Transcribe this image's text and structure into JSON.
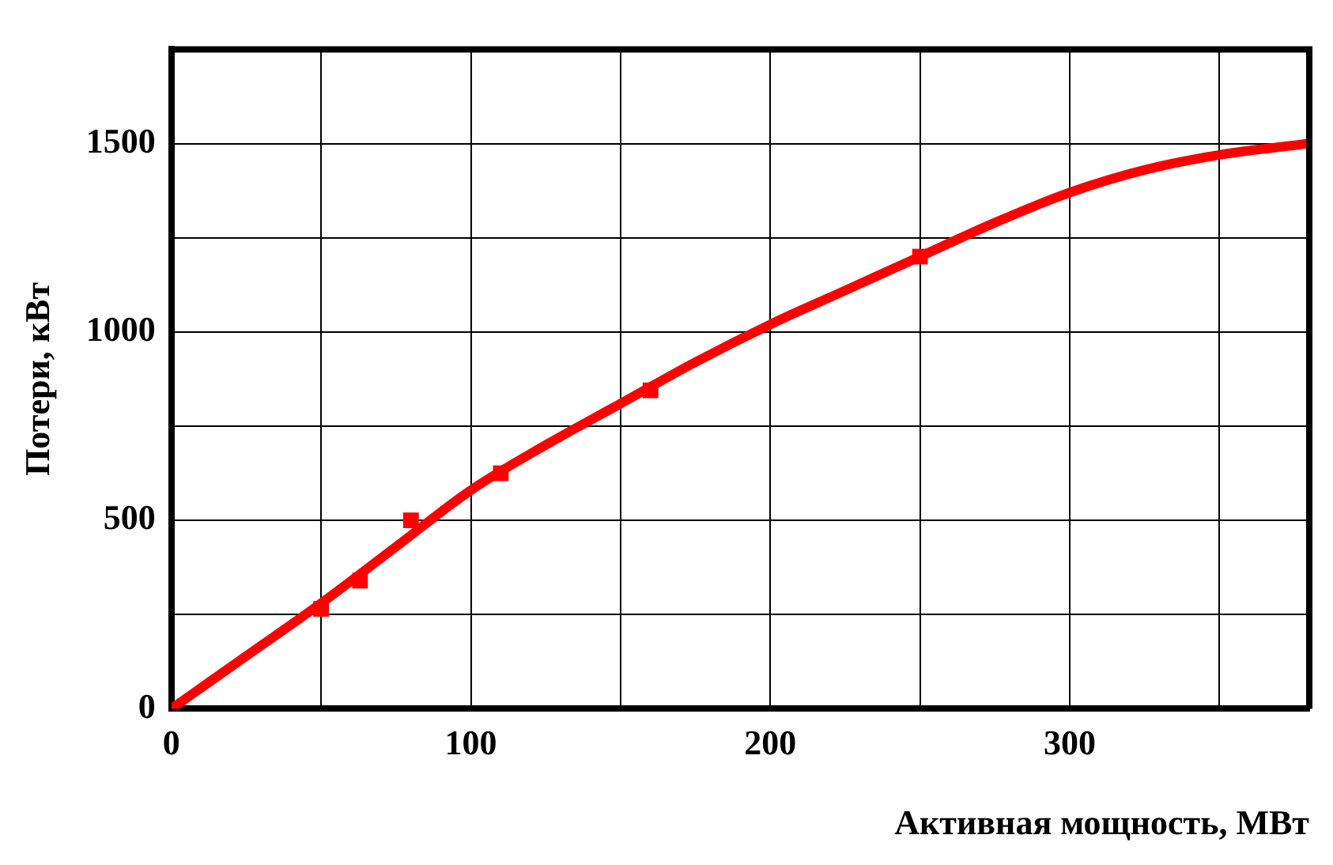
{
  "chart_data": {
    "type": "scatter",
    "xlabel": "Активная мощность, МВт",
    "ylabel": "Потери, кВт",
    "xlim": [
      0,
      380
    ],
    "ylim": [
      0,
      1750
    ],
    "xticks": [
      0,
      {
        "value": 50,
        "label": null
      },
      100,
      {
        "value": 150,
        "label": null
      },
      200,
      {
        "value": 250,
        "label": null
      },
      300,
      {
        "value": 350,
        "label": null
      }
    ],
    "yticks": [
      0,
      {
        "value": 250,
        "label": null
      },
      500,
      {
        "value": 750,
        "label": null
      },
      1000,
      {
        "value": 1250,
        "label": null
      },
      1500
    ],
    "grid": true,
    "legend": false,
    "series": [
      {
        "type": "scatter",
        "color": "#ff0000",
        "marker": "square",
        "x": [
          50,
          63,
          80,
          110,
          160,
          250
        ],
        "values": [
          265,
          340,
          500,
          625,
          845,
          1200
        ]
      },
      {
        "type": "line",
        "color": "#ff0000",
        "marker": "none",
        "line_style": "solid",
        "x": [
          0,
          25,
          50,
          75,
          100,
          125,
          150,
          175,
          200,
          225,
          250,
          275,
          300,
          325,
          350,
          380
        ],
        "values": [
          0,
          140,
          280,
          430,
          580,
          700,
          810,
          920,
          1020,
          1110,
          1200,
          1290,
          1370,
          1430,
          1470,
          1500
        ]
      }
    ]
  }
}
